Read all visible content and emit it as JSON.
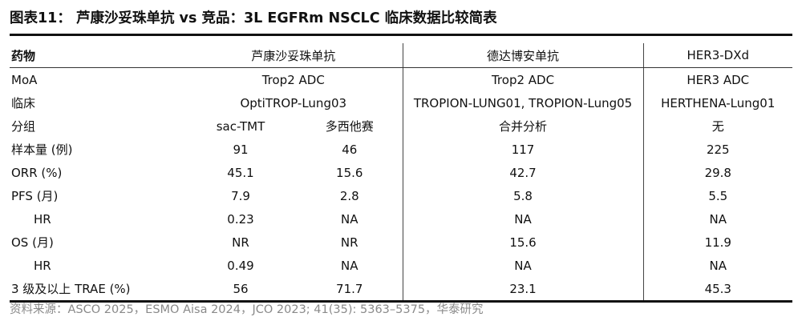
{
  "title": "图表11：  芦康沙妥珠单抗 vs 竞品：3L EGFRm NSCLC 临床数据比较简表",
  "header": {
    "col0": "药物",
    "col1": "芦康沙妥珠单抗",
    "col2": "德达博安单抗",
    "col3": "HER3-DXd"
  },
  "rows": {
    "moa": {
      "label": "MoA",
      "v1": "Trop2 ADC",
      "v2": "Trop2 ADC",
      "v3": "HER3 ADC"
    },
    "trial": {
      "label": "临床",
      "v1": "OptiTROP-Lung03",
      "v2": "TROPION-LUNG01, TROPION-Lung05",
      "v3": "HERTHENA-Lung01"
    },
    "group": {
      "label": "分组",
      "v1a": "sac-TMT",
      "v1b": "多西他赛",
      "v2": "合并分析",
      "v3": "无"
    },
    "n": {
      "label": "样本量 (例)",
      "v1a": "91",
      "v1b": "46",
      "v2": "117",
      "v3": "225"
    },
    "orr": {
      "label": "ORR (%)",
      "v1a": "45.1",
      "v1b": "15.6",
      "v2": "42.7",
      "v3": "29.8"
    },
    "pfs": {
      "label": "PFS (月)",
      "v1a": "7.9",
      "v1b": "2.8",
      "v2": "5.8",
      "v3": "5.5"
    },
    "pfs_hr": {
      "label": "HR",
      "v1a": "0.23",
      "v1b": "NA",
      "v2": "NA",
      "v3": "NA"
    },
    "os": {
      "label": "OS (月)",
      "v1a": "NR",
      "v1b": "NR",
      "v2": "15.6",
      "v3": "11.9"
    },
    "os_hr": {
      "label": "HR",
      "v1a": "0.49",
      "v1b": "NA",
      "v2": "NA",
      "v3": "NA"
    },
    "trae": {
      "label": "3 级及以上 TRAE (%)",
      "v1a": "56",
      "v1b": "71.7",
      "v2": "23.1",
      "v3": "45.3"
    }
  },
  "source": "资料来源：ASCO 2025，ESMO Aisa 2024，JCO 2023; 41(35): 5363–5375，华泰研究"
}
